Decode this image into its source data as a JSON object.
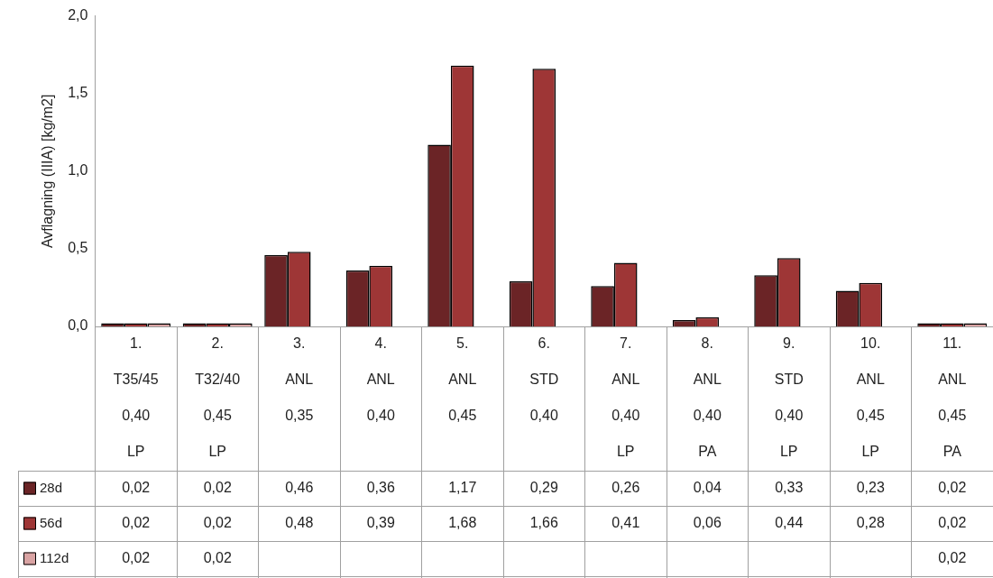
{
  "chart_data": {
    "type": "bar",
    "ylabel": "Avflagning (IIIA) [kg/m2]",
    "categories": [
      "1.\nT35/45\n0,40\nLP",
      "2.\nT32/40\n0,45\nLP",
      "3.\nANL\n0,35",
      "4.\nANL\n0,40",
      "5.\nANL\n0,45",
      "6.\nSTD\n0,40",
      "7.\nANL\n0,40\nLP",
      "8.\nANL\n0,40\nPA",
      "9.\nSTD\n0,40\nLP",
      "10.\nANL\n0,45\nLP",
      "11.\nANL\n0,45\nPA"
    ],
    "series": [
      {
        "name": "28d",
        "color": "#6b2426",
        "values": [
          0.02,
          0.02,
          0.46,
          0.36,
          1.17,
          0.29,
          0.26,
          0.04,
          0.33,
          0.23,
          0.02
        ],
        "value_labels": [
          "0,02",
          "0,02",
          "0,46",
          "0,36",
          "1,17",
          "0,29",
          "0,26",
          "0,04",
          "0,33",
          "0,23",
          "0,02"
        ]
      },
      {
        "name": "56d",
        "color": "#9e3636",
        "values": [
          0.02,
          0.02,
          0.48,
          0.39,
          1.68,
          1.66,
          0.41,
          0.06,
          0.44,
          0.28,
          0.02
        ],
        "value_labels": [
          "0,02",
          "0,02",
          "0,48",
          "0,39",
          "1,68",
          "1,66",
          "0,41",
          "0,06",
          "0,44",
          "0,28",
          "0,02"
        ]
      },
      {
        "name": "112d",
        "color": "#d9a3a3",
        "values": [
          0.02,
          0.02,
          null,
          null,
          null,
          null,
          null,
          null,
          null,
          null,
          0.02
        ],
        "value_labels": [
          "0,02",
          "0,02",
          null,
          null,
          null,
          null,
          null,
          null,
          null,
          null,
          "0,02"
        ]
      }
    ],
    "ylim": [
      0,
      2
    ],
    "yticks": [
      {
        "value": 0,
        "label": "0,0"
      },
      {
        "value": 0.5,
        "label": "0,5"
      },
      {
        "value": 1,
        "label": "1,0"
      },
      {
        "value": 1.5,
        "label": "1,5"
      },
      {
        "value": 2,
        "label": "2,0"
      }
    ],
    "grid": false,
    "legend": "bottom left"
  }
}
